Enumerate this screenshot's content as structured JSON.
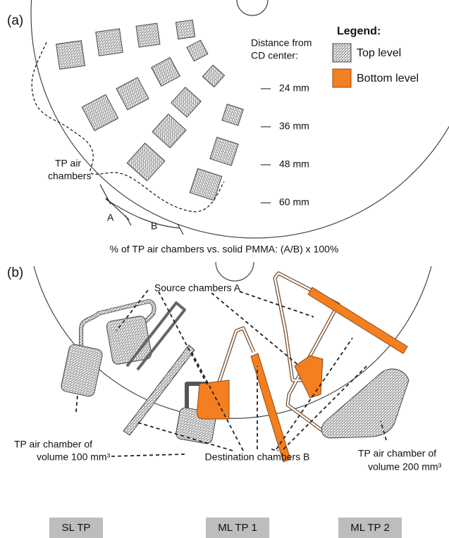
{
  "panel_a": {
    "label": "(a)",
    "legend": {
      "title": "Legend:",
      "items": [
        "Top level",
        "Bottom level"
      ]
    },
    "distance_title": [
      "Distance from",
      "CD center:"
    ],
    "distances": [
      "24 mm",
      "36 mm",
      "48 mm",
      "60 mm"
    ],
    "tp_label": [
      "TP air",
      "chambers"
    ],
    "segments": [
      "A",
      "B"
    ],
    "formula": "% of TP air chambers vs. solid PMMA: (A/B) x 100%"
  },
  "panel_b": {
    "label": "(b)",
    "source": "Source chambers A",
    "tp100": [
      "TP air chamber of",
      "volume 100 mm³"
    ],
    "tp200": [
      "TP air chamber of",
      "volume 200 mm³"
    ],
    "destination": "Destination chambers B",
    "devices": [
      "SL TP",
      "ML TP 1",
      "ML TP 2"
    ]
  }
}
